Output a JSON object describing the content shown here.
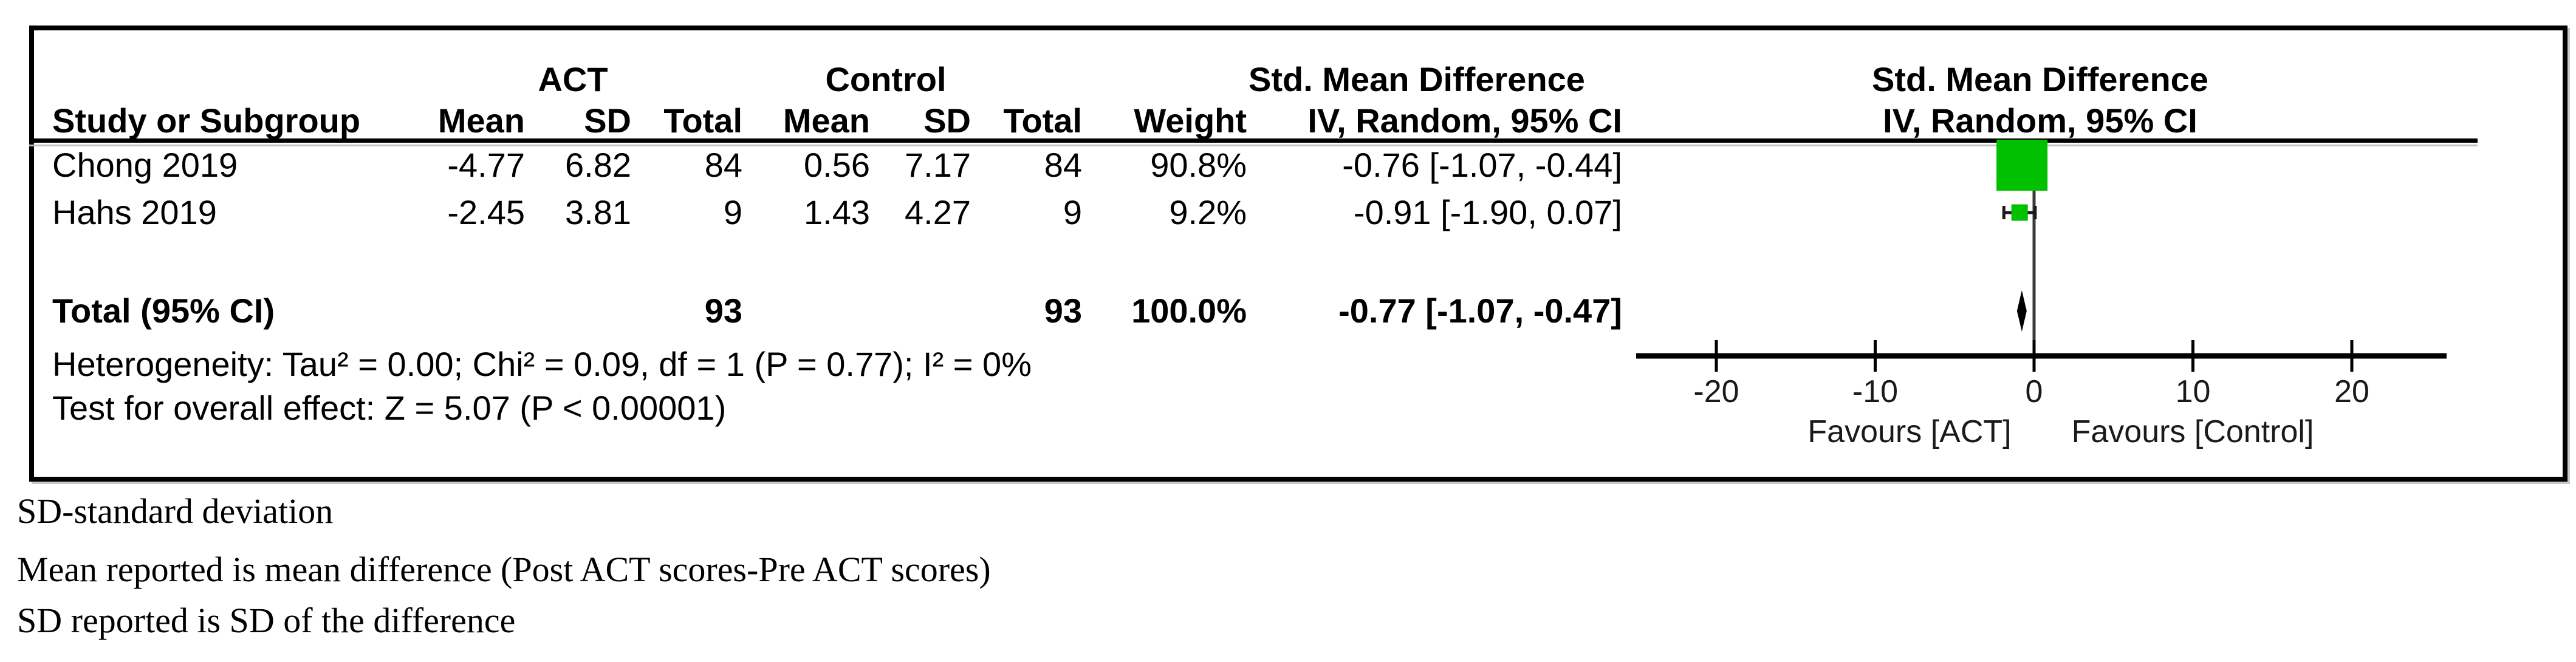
{
  "table": {
    "group_headers": {
      "act": "ACT",
      "control": "Control",
      "smd": "Std. Mean Difference",
      "plot_smd": "Std. Mean Difference"
    },
    "col_headers": {
      "study": "Study or Subgroup",
      "act_mean": "Mean",
      "act_sd": "SD",
      "act_total": "Total",
      "ctl_mean": "Mean",
      "ctl_sd": "SD",
      "ctl_total": "Total",
      "weight": "Weight",
      "ci": "IV, Random, 95% CI",
      "plot_ci": "IV, Random, 95% CI"
    },
    "rows": [
      {
        "study": "Chong 2019",
        "act_mean": "-4.77",
        "act_sd": "6.82",
        "act_total": "84",
        "ctl_mean": "0.56",
        "ctl_sd": "7.17",
        "ctl_total": "84",
        "weight": "90.8%",
        "ci": "-0.76 [-1.07, -0.44]"
      },
      {
        "study": "Hahs 2019",
        "act_mean": "-2.45",
        "act_sd": "3.81",
        "act_total": "9",
        "ctl_mean": "1.43",
        "ctl_sd": "4.27",
        "ctl_total": "9",
        "weight": "9.2%",
        "ci": "-0.91 [-1.90, 0.07]"
      }
    ],
    "total_row": {
      "label": "Total (95% CI)",
      "act_total": "93",
      "ctl_total": "93",
      "weight": "100.0%",
      "ci": "-0.77 [-1.07, -0.47]"
    },
    "heterogeneity": "Heterogeneity: Tau² = 0.00; Chi² = 0.09, df = 1 (P = 0.77); I² = 0%",
    "overall_effect": "Test for overall effect: Z = 5.07 (P < 0.00001)"
  },
  "chart_data": {
    "type": "forest",
    "effect_measure": "Std. Mean Difference, IV, Random, 95% CI",
    "studies": [
      {
        "label": "Chong 2019",
        "smd": -0.76,
        "ci_low": -1.07,
        "ci_high": -0.44,
        "weight_pct": 90.8
      },
      {
        "label": "Hahs 2019",
        "smd": -0.91,
        "ci_low": -1.9,
        "ci_high": 0.07,
        "weight_pct": 9.2
      }
    ],
    "total": {
      "label": "Total (95% CI)",
      "smd": -0.77,
      "ci_low": -1.07,
      "ci_high": -0.47
    },
    "axis": {
      "min": -20,
      "max": 20,
      "ticks": [
        -20,
        -10,
        0,
        10,
        20
      ],
      "left_label": "Favours [ACT]",
      "right_label": "Favours [Control]"
    },
    "marker_color": "#00c000",
    "diamond_color": "#000000"
  },
  "footnotes": [
    "SD-standard deviation",
    "Mean reported is mean difference (Post ACT scores-Pre ACT scores)",
    "SD reported is SD of the difference"
  ]
}
